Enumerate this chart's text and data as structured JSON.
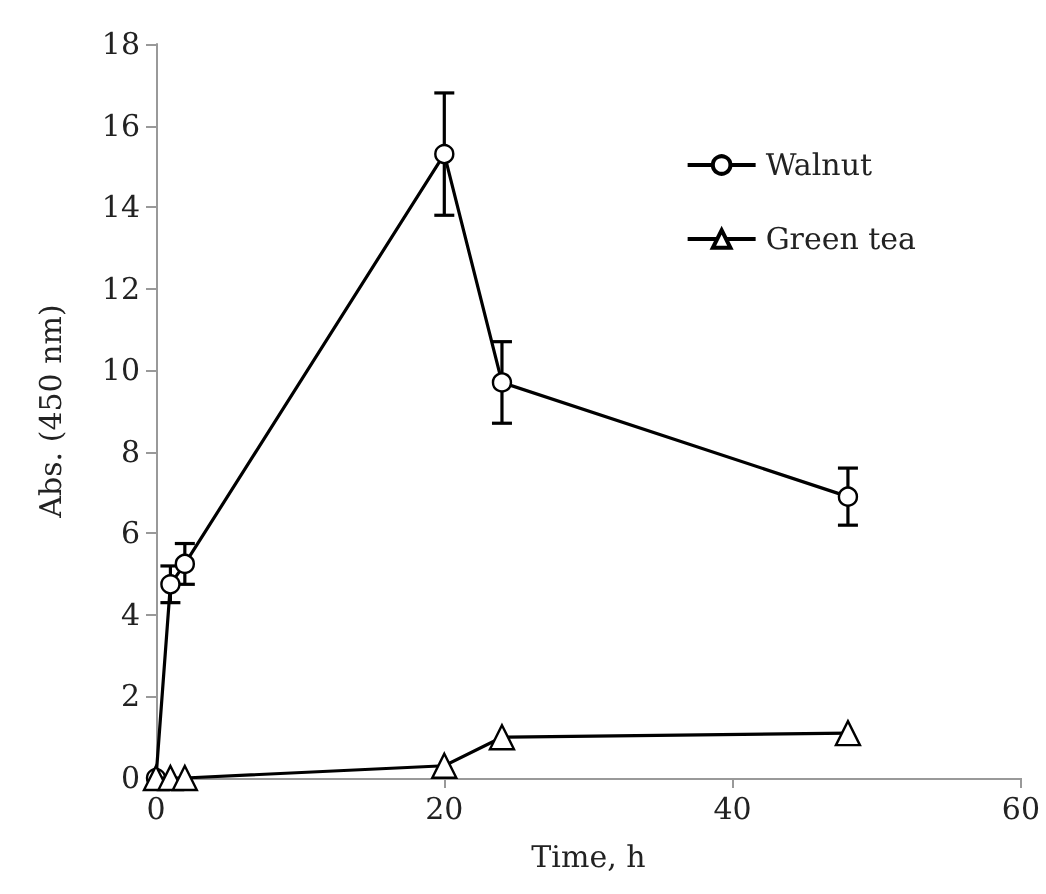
{
  "chart_data": {
    "type": "line",
    "xlabel": "Time, h",
    "ylabel": "Abs. (450 nm)",
    "xlim": [
      0,
      60
    ],
    "xticks": [
      0,
      20,
      40,
      60
    ],
    "ylim": [
      0,
      18
    ],
    "yticks": [
      0,
      2,
      4,
      6,
      8,
      10,
      12,
      14,
      16,
      18
    ],
    "grid": false,
    "legend": "top right",
    "line_style": "solid",
    "series": [
      {
        "name": "Walnut",
        "color": "#000000",
        "marker": "circle",
        "x": [
          0,
          1,
          2,
          20,
          24,
          48
        ],
        "values": [
          0,
          4.75,
          5.25,
          15.3,
          9.7,
          6.9
        ],
        "errors": [
          null,
          0.45,
          0.5,
          1.5,
          1.0,
          0.7
        ]
      },
      {
        "name": "Green tea",
        "color": "#000000",
        "marker": "triangle",
        "x": [
          0,
          1,
          2,
          20,
          24,
          48
        ],
        "values": [
          0,
          0,
          0,
          0.3,
          1.0,
          1.1
        ]
      }
    ]
  }
}
